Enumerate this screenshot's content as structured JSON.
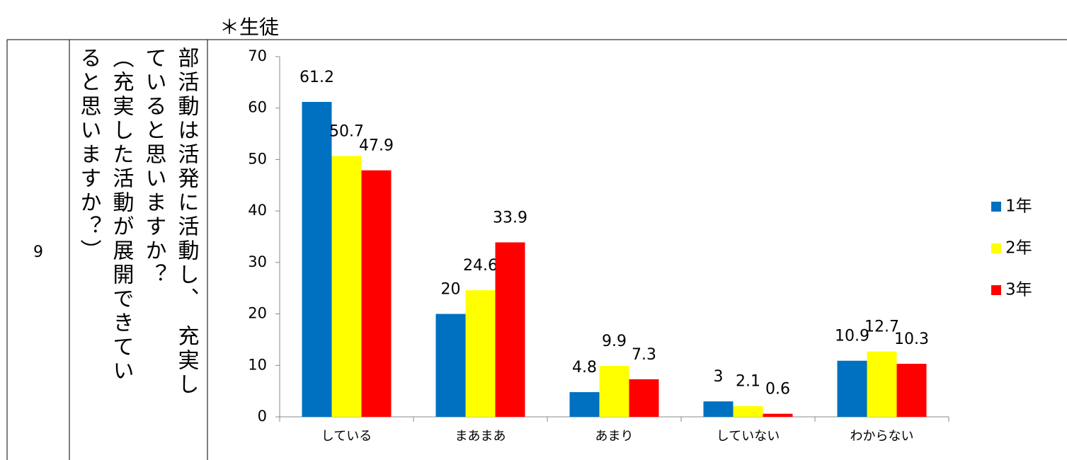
{
  "heading": "＊生徒",
  "row": {
    "number": "9",
    "question_lines": [
      "部活動は活発に活動し、　充実し",
      "ていると思いますか？",
      "（充実した活動が展開できてい",
      "ると思いますか？）"
    ]
  },
  "chart_data": {
    "type": "bar",
    "categories": [
      "している",
      "まあまあ",
      "あまり",
      "していない",
      "わからない"
    ],
    "series": [
      {
        "name": "1年",
        "color": "#0070c0",
        "values": [
          61.2,
          20,
          4.8,
          3,
          10.9
        ]
      },
      {
        "name": "2年",
        "color": "#ffff00",
        "values": [
          50.7,
          24.6,
          9.9,
          2.1,
          12.7
        ]
      },
      {
        "name": "3年",
        "color": "#ff0000",
        "values": [
          47.9,
          33.9,
          7.3,
          0.6,
          10.3
        ]
      }
    ],
    "ylim": [
      0,
      70
    ],
    "yticks": [
      0,
      10,
      20,
      30,
      40,
      50,
      60,
      70
    ],
    "legend": "right",
    "grid": false
  }
}
